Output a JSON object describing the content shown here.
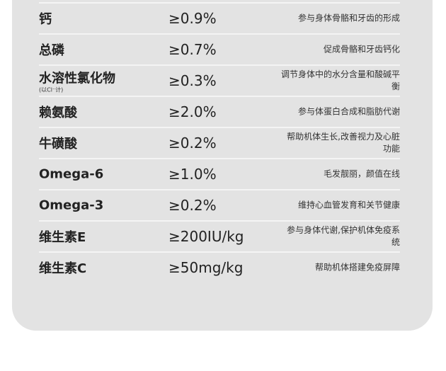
{
  "rows": [
    {
      "name": "钙",
      "sub": "",
      "value": "≥0.9%",
      "desc": "参与身体骨骼和牙齿的形成"
    },
    {
      "name": "总磷",
      "sub": "",
      "value": "≥0.7%",
      "desc": "促成骨骼和牙齿钙化"
    },
    {
      "name": "水溶性氯化物",
      "sub": "(以Cl⁻计)",
      "value": "≥0.3%",
      "desc": "调节身体中的水分含量和酸碱平衡"
    },
    {
      "name": "赖氨酸",
      "sub": "",
      "value": "≥2.0%",
      "desc": "参与体蛋白合成和脂肪代谢"
    },
    {
      "name": "牛磺酸",
      "sub": "",
      "value": "≥0.2%",
      "desc": "帮助机体生长,改善视力及心脏功能"
    },
    {
      "name": "Omega-6",
      "sub": "",
      "value": "≥1.0%",
      "desc": "毛发靓丽，颜值在线"
    },
    {
      "name": "Omega-3",
      "sub": "",
      "value": "≥0.2%",
      "desc": "维持心血管发育和关节健康"
    },
    {
      "name": "维生素E",
      "sub": "",
      "value": "≥200IU/kg",
      "desc": "参与身体代谢,保护机体免疫系统"
    },
    {
      "name": "维生素C",
      "sub": "",
      "value": "≥50mg/kg",
      "desc": "帮助机体搭建免疫屏障"
    }
  ]
}
